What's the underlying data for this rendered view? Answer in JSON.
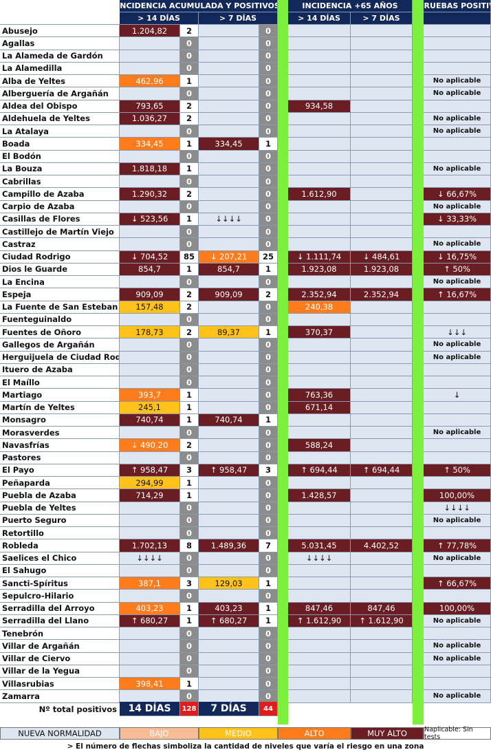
{
  "header": {
    "group1": "INCIDENCIA ACUMULADA Y POSITIVOS",
    "group2": "INCIDENCIA +65 AÑOS",
    "group3": "% PRUEBAS POSITIVAS",
    "h14": "> 14 DÍAS",
    "h7": "> 7 DÍAS",
    "g2h14": "> 14 DÍAS",
    "g2h7": "> 7 DÍAS"
  },
  "rows": [
    {
      "name": "Abusejo",
      "ia14": "1.204,82",
      "ia14c": "MA",
      "p14": "2",
      "ia7": "",
      "ia7c": "",
      "p7": "0",
      "a14": "",
      "a14c": "",
      "a7": "",
      "a7c": "",
      "pp": "",
      "ppc": ""
    },
    {
      "name": "Agallas",
      "ia14": "",
      "ia14c": "",
      "p14": "0",
      "ia7": "",
      "ia7c": "",
      "p7": "0",
      "a14": "",
      "a14c": "",
      "a7": "",
      "a7c": "",
      "pp": "",
      "ppc": ""
    },
    {
      "name": "La Alameda de Gardón",
      "ia14": "",
      "ia14c": "",
      "p14": "0",
      "ia7": "",
      "ia7c": "",
      "p7": "0",
      "a14": "",
      "a14c": "",
      "a7": "",
      "a7c": "",
      "pp": "",
      "ppc": ""
    },
    {
      "name": "La Alamedilla",
      "ia14": "",
      "ia14c": "",
      "p14": "0",
      "ia7": "",
      "ia7c": "",
      "p7": "0",
      "a14": "",
      "a14c": "",
      "a7": "",
      "a7c": "",
      "pp": "",
      "ppc": ""
    },
    {
      "name": "Alba de Yeltes",
      "ia14": "462,96",
      "ia14c": "AL",
      "p14": "1",
      "ia7": "",
      "ia7c": "",
      "p7": "0",
      "a14": "",
      "a14c": "",
      "a7": "",
      "a7c": "",
      "pp": "No aplicable",
      "ppc": "pl"
    },
    {
      "name": "Alberguería de Argañán",
      "ia14": "",
      "ia14c": "",
      "p14": "0",
      "ia7": "",
      "ia7c": "",
      "p7": "0",
      "a14": "",
      "a14c": "",
      "a7": "",
      "a7c": "",
      "pp": "No aplicable",
      "ppc": "pl"
    },
    {
      "name": "Aldea del Obispo",
      "ia14": "793,65",
      "ia14c": "MA",
      "p14": "2",
      "ia7": "",
      "ia7c": "",
      "p7": "0",
      "a14": "934,58",
      "a14c": "MA",
      "a7": "",
      "a7c": "",
      "pp": "",
      "ppc": ""
    },
    {
      "name": "Aldehuela de Yeltes",
      "ia14": "1.036,27",
      "ia14c": "MA",
      "p14": "2",
      "ia7": "",
      "ia7c": "",
      "p7": "0",
      "a14": "",
      "a14c": "",
      "a7": "",
      "a7c": "",
      "pp": "No aplicable",
      "ppc": "pl"
    },
    {
      "name": "La Atalaya",
      "ia14": "",
      "ia14c": "",
      "p14": "0",
      "ia7": "",
      "ia7c": "",
      "p7": "0",
      "a14": "",
      "a14c": "",
      "a7": "",
      "a7c": "",
      "pp": "No aplicable",
      "ppc": "pl"
    },
    {
      "name": "Boada",
      "ia14": "334,45",
      "ia14c": "AL",
      "p14": "1",
      "ia7": "334,45",
      "ia7c": "MA",
      "p7": "1",
      "a14": "",
      "a14c": "",
      "a7": "",
      "a7c": "",
      "pp": "",
      "ppc": ""
    },
    {
      "name": "El Bodón",
      "ia14": "",
      "ia14c": "",
      "p14": "0",
      "ia7": "",
      "ia7c": "",
      "p7": "0",
      "a14": "",
      "a14c": "",
      "a7": "",
      "a7c": "",
      "pp": "",
      "ppc": ""
    },
    {
      "name": "La Bouza",
      "ia14": "1.818,18",
      "ia14c": "MA",
      "p14": "1",
      "ia7": "",
      "ia7c": "",
      "p7": "0",
      "a14": "",
      "a14c": "",
      "a7": "",
      "a7c": "",
      "pp": "No aplicable",
      "ppc": "pl"
    },
    {
      "name": "Cabrillas",
      "ia14": "",
      "ia14c": "",
      "p14": "0",
      "ia7": "",
      "ia7c": "",
      "p7": "0",
      "a14": "",
      "a14c": "",
      "a7": "",
      "a7c": "",
      "pp": "",
      "ppc": ""
    },
    {
      "name": "Campillo de Azaba",
      "ia14": "1.290,32",
      "ia14c": "MA",
      "p14": "2",
      "ia7": "",
      "ia7c": "",
      "p7": "0",
      "a14": "1.612,90",
      "a14c": "MA",
      "a7": "",
      "a7c": "",
      "pp": "↓ 66,67%",
      "ppc": "MA"
    },
    {
      "name": "Carpio de Azaba",
      "ia14": "",
      "ia14c": "",
      "p14": "0",
      "ia7": "",
      "ia7c": "",
      "p7": "0",
      "a14": "",
      "a14c": "",
      "a7": "",
      "a7c": "",
      "pp": "No aplicable",
      "ppc": "pl"
    },
    {
      "name": "Casillas de Flores",
      "ia14": "↓ 523,56",
      "ia14c": "MA",
      "p14": "1",
      "ia7": "↓↓↓↓",
      "ia7c": "",
      "p7": "0",
      "a14": "",
      "a14c": "",
      "a7": "",
      "a7c": "",
      "pp": "↓ 33,33%",
      "ppc": "MA"
    },
    {
      "name": "Castillejo de Martín Viejo",
      "ia14": "",
      "ia14c": "",
      "p14": "0",
      "ia7": "",
      "ia7c": "",
      "p7": "0",
      "a14": "",
      "a14c": "",
      "a7": "",
      "a7c": "",
      "pp": "",
      "ppc": ""
    },
    {
      "name": "Castraz",
      "ia14": "",
      "ia14c": "",
      "p14": "0",
      "ia7": "",
      "ia7c": "",
      "p7": "0",
      "a14": "",
      "a14c": "",
      "a7": "",
      "a7c": "",
      "pp": "No aplicable",
      "ppc": "pl"
    },
    {
      "name": "Ciudad Rodrigo",
      "ia14": "↓ 704,52",
      "ia14c": "MA",
      "p14": "85",
      "ia7": "↓ 207,21",
      "ia7c": "AL",
      "p7": "25",
      "a14": "↓ 1.111,74",
      "a14c": "MA",
      "a7": "↓ 484,61",
      "a7c": "MA",
      "pp": "↓ 16,75%",
      "ppc": "MA"
    },
    {
      "name": "Dios le Guarde",
      "ia14": "854,7",
      "ia14c": "MA",
      "p14": "1",
      "ia7": "854,7",
      "ia7c": "MA",
      "p7": "1",
      "a14": "1.923,08",
      "a14c": "MA",
      "a7": "1.923,08",
      "a7c": "MA",
      "pp": "↑ 50%",
      "ppc": "MA"
    },
    {
      "name": "La Encina",
      "ia14": "",
      "ia14c": "",
      "p14": "0",
      "ia7": "",
      "ia7c": "",
      "p7": "0",
      "a14": "",
      "a14c": "",
      "a7": "",
      "a7c": "",
      "pp": "No aplicable",
      "ppc": "pl"
    },
    {
      "name": "Espeja",
      "ia14": "909,09",
      "ia14c": "MA",
      "p14": "2",
      "ia7": "909,09",
      "ia7c": "MA",
      "p7": "2",
      "a14": "2.352,94",
      "a14c": "MA",
      "a7": "2.352,94",
      "a7c": "MA",
      "pp": "↑ 16,67%",
      "ppc": "MA"
    },
    {
      "name": "La Fuente de San Esteban",
      "ia14": "157,48",
      "ia14c": "ME",
      "p14": "2",
      "ia7": "",
      "ia7c": "",
      "p7": "0",
      "a14": "240,38",
      "a14c": "AL",
      "a7": "",
      "a7c": "",
      "pp": "",
      "ppc": ""
    },
    {
      "name": "Fuenteguinaldo",
      "ia14": "",
      "ia14c": "",
      "p14": "0",
      "ia7": "",
      "ia7c": "",
      "p7": "0",
      "a14": "",
      "a14c": "",
      "a7": "",
      "a7c": "",
      "pp": "",
      "ppc": ""
    },
    {
      "name": "Fuentes de Oñoro",
      "ia14": "178,73",
      "ia14c": "ME",
      "p14": "2",
      "ia7": "89,37",
      "ia7c": "ME",
      "p7": "1",
      "a14": "370,37",
      "a14c": "MA",
      "a7": "",
      "a7c": "",
      "pp": "↓↓↓",
      "ppc": ""
    },
    {
      "name": "Gallegos de Argañán",
      "ia14": "",
      "ia14c": "",
      "p14": "0",
      "ia7": "",
      "ia7c": "",
      "p7": "0",
      "a14": "",
      "a14c": "",
      "a7": "",
      "a7c": "",
      "pp": "No aplicable",
      "ppc": "pl"
    },
    {
      "name": "Herguijuela de Ciudad Rodrigo",
      "ia14": "",
      "ia14c": "",
      "p14": "0",
      "ia7": "",
      "ia7c": "",
      "p7": "0",
      "a14": "",
      "a14c": "",
      "a7": "",
      "a7c": "",
      "pp": "No aplicable",
      "ppc": "pl"
    },
    {
      "name": "Ituero de Azaba",
      "ia14": "",
      "ia14c": "",
      "p14": "0",
      "ia7": "",
      "ia7c": "",
      "p7": "0",
      "a14": "",
      "a14c": "",
      "a7": "",
      "a7c": "",
      "pp": "",
      "ppc": ""
    },
    {
      "name": "El Maíllo",
      "ia14": "",
      "ia14c": "",
      "p14": "0",
      "ia7": "",
      "ia7c": "",
      "p7": "0",
      "a14": "",
      "a14c": "",
      "a7": "",
      "a7c": "",
      "pp": "",
      "ppc": ""
    },
    {
      "name": "Martiago",
      "ia14": "393,7",
      "ia14c": "AL",
      "p14": "1",
      "ia7": "",
      "ia7c": "",
      "p7": "0",
      "a14": "763,36",
      "a14c": "MA",
      "a7": "",
      "a7c": "",
      "pp": "↓",
      "ppc": ""
    },
    {
      "name": "Martín de Yeltes",
      "ia14": "245,1",
      "ia14c": "ME",
      "p14": "1",
      "ia7": "",
      "ia7c": "",
      "p7": "0",
      "a14": "671,14",
      "a14c": "MA",
      "a7": "",
      "a7c": "",
      "pp": "",
      "ppc": ""
    },
    {
      "name": "Monsagro",
      "ia14": "740,74",
      "ia14c": "MA",
      "p14": "1",
      "ia7": "740,74",
      "ia7c": "MA",
      "p7": "1",
      "a14": "",
      "a14c": "",
      "a7": "",
      "a7c": "",
      "pp": "",
      "ppc": ""
    },
    {
      "name": "Morasverdes",
      "ia14": "",
      "ia14c": "",
      "p14": "0",
      "ia7": "",
      "ia7c": "",
      "p7": "0",
      "a14": "",
      "a14c": "",
      "a7": "",
      "a7c": "",
      "pp": "No aplicable",
      "ppc": "pl"
    },
    {
      "name": "Navasfrías",
      "ia14": "↓ 490,20",
      "ia14c": "AL",
      "p14": "2",
      "ia7": "",
      "ia7c": "",
      "p7": "0",
      "a14": "588,24",
      "a14c": "MA",
      "a7": "",
      "a7c": "",
      "pp": "",
      "ppc": ""
    },
    {
      "name": "Pastores",
      "ia14": "",
      "ia14c": "",
      "p14": "0",
      "ia7": "",
      "ia7c": "",
      "p7": "0",
      "a14": "",
      "a14c": "",
      "a7": "",
      "a7c": "",
      "pp": "",
      "ppc": ""
    },
    {
      "name": "El Payo",
      "ia14": "↑ 958,47",
      "ia14c": "MA",
      "p14": "3",
      "ia7": "↑ 958,47",
      "ia7c": "MA",
      "p7": "3",
      "a14": "↑ 694,44",
      "a14c": "MA",
      "a7": "↑ 694,44",
      "a7c": "MA",
      "pp": "↑ 50%",
      "ppc": "MA"
    },
    {
      "name": "Peñaparda",
      "ia14": "294,99",
      "ia14c": "ME",
      "p14": "1",
      "ia7": "",
      "ia7c": "",
      "p7": "0",
      "a14": "",
      "a14c": "",
      "a7": "",
      "a7c": "",
      "pp": "",
      "ppc": ""
    },
    {
      "name": "Puebla de Azaba",
      "ia14": "714,29",
      "ia14c": "MA",
      "p14": "1",
      "ia7": "",
      "ia7c": "",
      "p7": "0",
      "a14": "1.428,57",
      "a14c": "MA",
      "a7": "",
      "a7c": "",
      "pp": "100,00%",
      "ppc": "MA"
    },
    {
      "name": "Puebla de Yeltes",
      "ia14": "",
      "ia14c": "",
      "p14": "0",
      "ia7": "",
      "ia7c": "",
      "p7": "0",
      "a14": "",
      "a14c": "",
      "a7": "",
      "a7c": "",
      "pp": "↓↓↓↓",
      "ppc": ""
    },
    {
      "name": "Puerto Seguro",
      "ia14": "",
      "ia14c": "",
      "p14": "0",
      "ia7": "",
      "ia7c": "",
      "p7": "0",
      "a14": "",
      "a14c": "",
      "a7": "",
      "a7c": "",
      "pp": "No aplicable",
      "ppc": "pl"
    },
    {
      "name": "Retortillo",
      "ia14": "",
      "ia14c": "",
      "p14": "0",
      "ia7": "",
      "ia7c": "",
      "p7": "0",
      "a14": "",
      "a14c": "",
      "a7": "",
      "a7c": "",
      "pp": "",
      "ppc": ""
    },
    {
      "name": "Robleda",
      "ia14": "1.702,13",
      "ia14c": "MA",
      "p14": "8",
      "ia7": "1.489,36",
      "ia7c": "MA",
      "p7": "7",
      "a14": "5.031,45",
      "a14c": "MA",
      "a7": "4.402,52",
      "a7c": "MA",
      "pp": "↑ 77,78%",
      "ppc": "MA"
    },
    {
      "name": "Saelices el Chico",
      "ia14": "↓↓↓↓",
      "ia14c": "",
      "p14": "0",
      "ia7": "",
      "ia7c": "",
      "p7": "0",
      "a14": "↓↓↓↓",
      "a14c": "",
      "a7": "",
      "a7c": "",
      "pp": "No aplicable",
      "ppc": "pl"
    },
    {
      "name": "El Sahugo",
      "ia14": "",
      "ia14c": "",
      "p14": "0",
      "ia7": "",
      "ia7c": "",
      "p7": "0",
      "a14": "",
      "a14c": "",
      "a7": "",
      "a7c": "",
      "pp": "",
      "ppc": ""
    },
    {
      "name": "Sancti-Spíritus",
      "ia14": "387,1",
      "ia14c": "AL",
      "p14": "3",
      "ia7": "129,03",
      "ia7c": "ME",
      "p7": "1",
      "a14": "",
      "a14c": "",
      "a7": "",
      "a7c": "",
      "pp": "↑ 66,67%",
      "ppc": "MA"
    },
    {
      "name": "Sepulcro-Hilario",
      "ia14": "",
      "ia14c": "",
      "p14": "0",
      "ia7": "",
      "ia7c": "",
      "p7": "0",
      "a14": "",
      "a14c": "",
      "a7": "",
      "a7c": "",
      "pp": "",
      "ppc": ""
    },
    {
      "name": "Serradilla del Arroyo",
      "ia14": "403,23",
      "ia14c": "AL",
      "p14": "1",
      "ia7": "403,23",
      "ia7c": "MA",
      "p7": "1",
      "a14": "847,46",
      "a14c": "MA",
      "a7": "847,46",
      "a7c": "MA",
      "pp": "100,00%",
      "ppc": "MA"
    },
    {
      "name": "Serradilla del Llano",
      "ia14": "↑ 680,27",
      "ia14c": "MA",
      "p14": "1",
      "ia7": "↑ 680,27",
      "ia7c": "MA",
      "p7": "1",
      "a14": "↑ 1.612,90",
      "a14c": "MA",
      "a7": "↑ 1.612,90",
      "a7c": "MA",
      "pp": "No aplicable",
      "ppc": "pl"
    },
    {
      "name": "Tenebrón",
      "ia14": "",
      "ia14c": "",
      "p14": "0",
      "ia7": "",
      "ia7c": "",
      "p7": "0",
      "a14": "",
      "a14c": "",
      "a7": "",
      "a7c": "",
      "pp": "",
      "ppc": ""
    },
    {
      "name": "Villar de Argañán",
      "ia14": "",
      "ia14c": "",
      "p14": "0",
      "ia7": "",
      "ia7c": "",
      "p7": "0",
      "a14": "",
      "a14c": "",
      "a7": "",
      "a7c": "",
      "pp": "No aplicable",
      "ppc": "pl"
    },
    {
      "name": "Villar de Ciervo",
      "ia14": "",
      "ia14c": "",
      "p14": "0",
      "ia7": "",
      "ia7c": "",
      "p7": "0",
      "a14": "",
      "a14c": "",
      "a7": "",
      "a7c": "",
      "pp": "No aplicable",
      "ppc": "pl"
    },
    {
      "name": "Villar de la Yegua",
      "ia14": "",
      "ia14c": "",
      "p14": "0",
      "ia7": "",
      "ia7c": "",
      "p7": "0",
      "a14": "",
      "a14c": "",
      "a7": "",
      "a7c": "",
      "pp": "",
      "ppc": ""
    },
    {
      "name": "Villasrubias",
      "ia14": "398,41",
      "ia14c": "AL",
      "p14": "1",
      "ia7": "",
      "ia7c": "",
      "p7": "0",
      "a14": "",
      "a14c": "",
      "a7": "",
      "a7c": "",
      "pp": "",
      "ppc": ""
    },
    {
      "name": "Zamarra",
      "ia14": "",
      "ia14c": "",
      "p14": "0",
      "ia7": "",
      "ia7c": "",
      "p7": "0",
      "a14": "",
      "a14c": "",
      "a7": "",
      "a7c": "",
      "pp": "No aplicable",
      "ppc": "pl"
    }
  ],
  "totals": {
    "label": "Nº total positivos",
    "l14": "14 DÍAS",
    "v14": "128",
    "l7": "7 DÍAS",
    "v7": "44"
  },
  "legend": {
    "nueva": "NUEVA NORMALIDAD",
    "bajo": "BAJO",
    "medio": "MEDIO",
    "alto": "ALTO",
    "muy_alto": "MUY ALTO",
    "naplic": "Naplicable: Sin tests"
  },
  "footnote": "> El número de flechas simboliza la cantidad de niveles que varía el riesgo en una zona",
  "colors": {
    "muy_alto": "#6a1d22",
    "alto": "#ff7c1c",
    "medio": "#ffc21a",
    "bajo": "#f8bc94",
    "green": "#7cf03c",
    "header": "#12285a"
  }
}
